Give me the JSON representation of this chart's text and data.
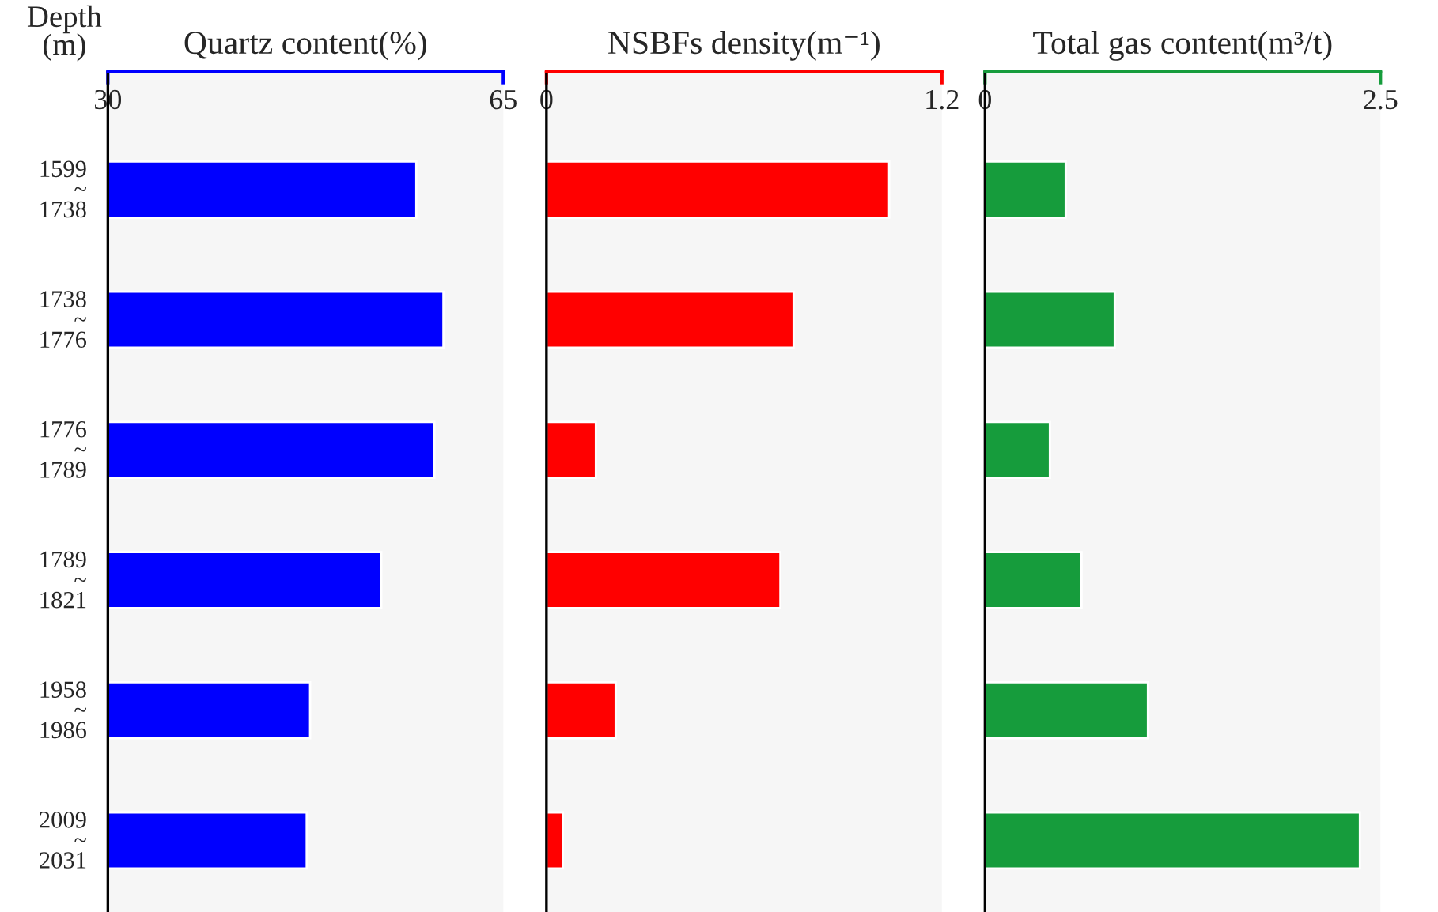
{
  "chart_data": [
    {
      "type": "bar",
      "orientation": "horizontal",
      "title": "Quartz content(%)",
      "ylabel": "Depth\n(m)",
      "categories": [
        "1599\n~\n1738",
        "1738\n~\n1776",
        "1776\n~\n1789",
        "1789\n~\n1821",
        "1958\n~\n1986",
        "2009\n~\n2031"
      ],
      "values": [
        57.3,
        59.7,
        58.9,
        54.2,
        47.9,
        47.6
      ],
      "color": "#0000ff",
      "xlim": [
        30,
        65
      ],
      "xticks": [
        30,
        65
      ],
      "grid": false,
      "legend": false
    },
    {
      "type": "bar",
      "orientation": "horizontal",
      "title": "NSBFs density(m⁻¹)",
      "values": [
        1.04,
        0.75,
        0.15,
        0.71,
        0.21,
        0.05
      ],
      "color": "#ff0000",
      "xlim": [
        0,
        1.2
      ],
      "xticks": [
        0,
        1.2
      ],
      "tick_labels": "x",
      "grid": false,
      "legend": false
    },
    {
      "type": "bar",
      "orientation": "horizontal",
      "title": "Total gas content(m³/t)",
      "values": [
        0.51,
        0.82,
        0.41,
        0.61,
        1.03,
        2.37
      ],
      "color": "#169c3c",
      "xlim": [
        0,
        2.5
      ],
      "xticks": [
        0,
        2.5
      ],
      "tick_labels": "x",
      "grid": false,
      "legend": false
    }
  ]
}
